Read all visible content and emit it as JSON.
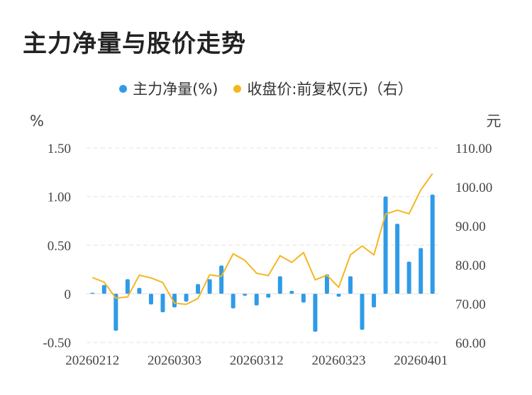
{
  "title": "主力净量与股价走势",
  "legend": {
    "series1": "主力净量(%)",
    "series2": "收盘价:前复权(元)（右）"
  },
  "colors": {
    "bar": "#2f9be8",
    "line": "#f5b621",
    "grid": "#e3e3e3"
  },
  "chart_data": {
    "type": "bar",
    "title": "主力净量与股价走势",
    "left_unit": "%",
    "right_unit": "元",
    "ylim_left": [
      -0.5,
      1.5
    ],
    "ylim_right": [
      60,
      110
    ],
    "left_ticks": [
      "-0.50",
      "0",
      "0.50",
      "1.00",
      "1.50"
    ],
    "left_tick_values": [
      -0.5,
      0,
      0.5,
      1.0,
      1.5
    ],
    "right_ticks": [
      "60.00",
      "70.00",
      "80.00",
      "90.00",
      "100.00",
      "110.00"
    ],
    "right_tick_values": [
      60,
      70,
      80,
      90,
      100,
      110
    ],
    "x_labels": [
      "20260212",
      "20260303",
      "20260312",
      "20260323",
      "20260401"
    ],
    "x_label_index": [
      0,
      7,
      14,
      21,
      28
    ],
    "grid": true,
    "legend_position": "top",
    "series": [
      {
        "name": "主力净量(%)",
        "type": "bar",
        "axis": "left",
        "values": [
          0.01,
          0.09,
          -0.38,
          0.15,
          0.06,
          -0.11,
          -0.19,
          -0.14,
          -0.08,
          0.1,
          0.15,
          0.29,
          -0.15,
          -0.02,
          -0.12,
          -0.04,
          0.18,
          0.03,
          -0.09,
          -0.39,
          0.2,
          -0.03,
          0.18,
          -0.37,
          -0.14,
          1.0,
          0.72,
          0.33,
          0.47,
          1.02
        ]
      },
      {
        "name": "收盘价:前复权(元)（右）",
        "type": "line",
        "axis": "right",
        "values": [
          76.7,
          75.5,
          71.4,
          71.7,
          77.3,
          76.6,
          75.4,
          70.1,
          69.8,
          71.3,
          77.4,
          77.0,
          82.8,
          81.1,
          77.8,
          77.2,
          82.3,
          80.6,
          83.1,
          76.1,
          77.3,
          74.2,
          82.5,
          84.8,
          82.5,
          93.0,
          94.0,
          93.1,
          99.2,
          103.4
        ]
      }
    ]
  }
}
